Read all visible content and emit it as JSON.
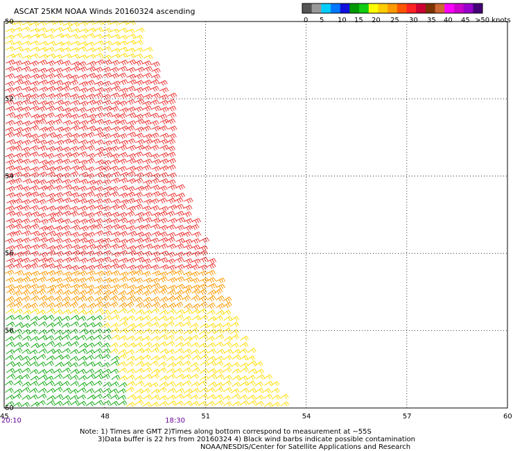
{
  "chart_data": {
    "type": "scatter",
    "title": "ASCAT 25KM NOAA Winds 20160324 ascending",
    "x_ticks": [
      "45",
      "48",
      "51",
      "54",
      "57",
      "60"
    ],
    "y_ticks": [
      "50",
      "52",
      "54",
      "56",
      "58",
      "60"
    ],
    "xlim": [
      45,
      60
    ],
    "ylim": [
      -60,
      -50
    ],
    "grid": true,
    "colorbar": {
      "labels": [
        "0",
        "5",
        "10",
        "15",
        "20",
        "25",
        "30",
        "35",
        "40",
        "45",
        ">50 knots"
      ],
      "colors": [
        "#555555",
        "#999999",
        "#00ccff",
        "#0077ff",
        "#1111dd",
        "#009900",
        "#11cc11",
        "#ffff00",
        "#ffcc00",
        "#ff9900",
        "#ff5500",
        "#ff2222",
        "#cc0033",
        "#7a3300",
        "#cc6633",
        "#ff00ff",
        "#cc00cc",
        "#9900cc",
        "#440077"
      ]
    },
    "swath_edge": [
      [
        48.8,
        -50
      ],
      [
        49.9,
        -52
      ],
      [
        50.0,
        -54
      ],
      [
        51.0,
        -56
      ],
      [
        51.9,
        -58
      ],
      [
        53.4,
        -60
      ]
    ],
    "wind_bands": [
      {
        "lat_range": [
          -50,
          -51
        ],
        "knots": 23
      },
      {
        "lat_range": [
          -51,
          -56.5
        ],
        "knots": 33
      },
      {
        "lat_range": [
          -56.5,
          -57.5
        ],
        "knots": 27
      },
      {
        "lat_range": [
          -57.5,
          -60
        ],
        "knots": 22
      },
      {
        "region": "southwest",
        "knots": 17
      }
    ],
    "time_labels": [
      {
        "text": "20:10",
        "lon": 45
      },
      {
        "text": "18:30",
        "lon": 49.9
      }
    ]
  },
  "notes": [
    "Note: 1) Times are GMT 2)Times along bottom correspond to measurement at ~55S",
    "3)Data buffer is 22 hrs from 20160324 4) Black wind barbs indicate possible contamination",
    "NOAA/NESDIS/Center for Satellite Applications and Research"
  ]
}
